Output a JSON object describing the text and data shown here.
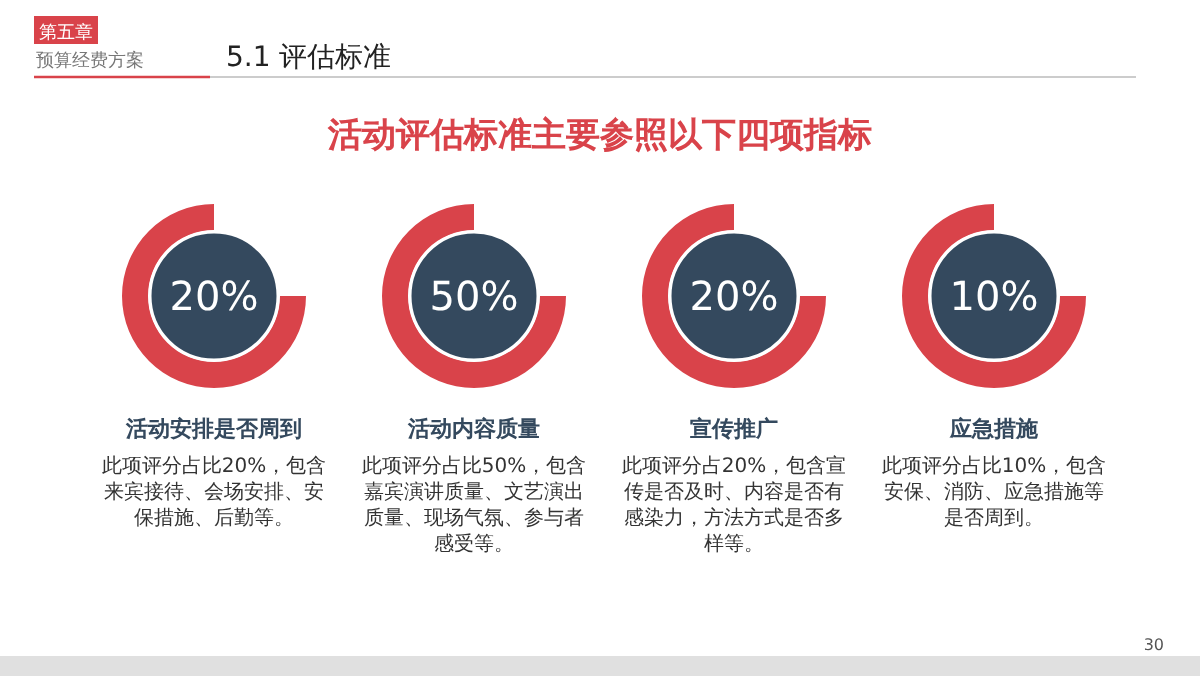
{
  "chart_data": {
    "type": "other",
    "title": "活动评估标准主要参照以下四项指标",
    "subtitle": "5.1 评估标准",
    "categories": [
      "活动安排是否周到",
      "活动内容质量",
      "宣传推广",
      "应急措施"
    ],
    "values": [
      20,
      50,
      20,
      10
    ],
    "value_labels": [
      "20%",
      "50%",
      "20%",
      "10%"
    ],
    "colors": [
      "#34495e",
      "#34495e",
      "#34495e",
      "#34495e"
    ],
    "annotations": [
      "第五章",
      "预算经费方案",
      "30",
      "此项评分占比20%，包含来宾接待、会场安排、安保措施、后勤等。",
      "此项评分占比50%，包含嘉宾演讲质量、文艺演出质量、现场气氛、参与者感受等。",
      "此项评分占20%，包含宣传是否及时、内容是否有感染力，方法方式是否多样等。",
      "此项评分占比10%，包含安保、消防、应急措施等是否周到。"
    ]
  }
}
